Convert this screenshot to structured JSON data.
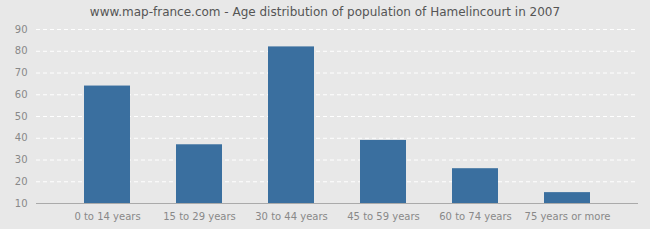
{
  "chart_data": {
    "type": "bar",
    "title": "www.map-france.com - Age distribution of population of Hamelincourt in 2007",
    "categories": [
      "0 to 14 years",
      "15 to 29 years",
      "30 to 44 years",
      "45 to 59 years",
      "60 to 74 years",
      "75 years or more"
    ],
    "values": [
      64,
      37,
      82,
      39,
      26,
      15
    ],
    "color": "#3a6f9f",
    "ylim": [
      10,
      90
    ],
    "yticks": [
      10,
      20,
      30,
      40,
      50,
      60,
      70,
      80,
      90
    ],
    "grid": true
  }
}
